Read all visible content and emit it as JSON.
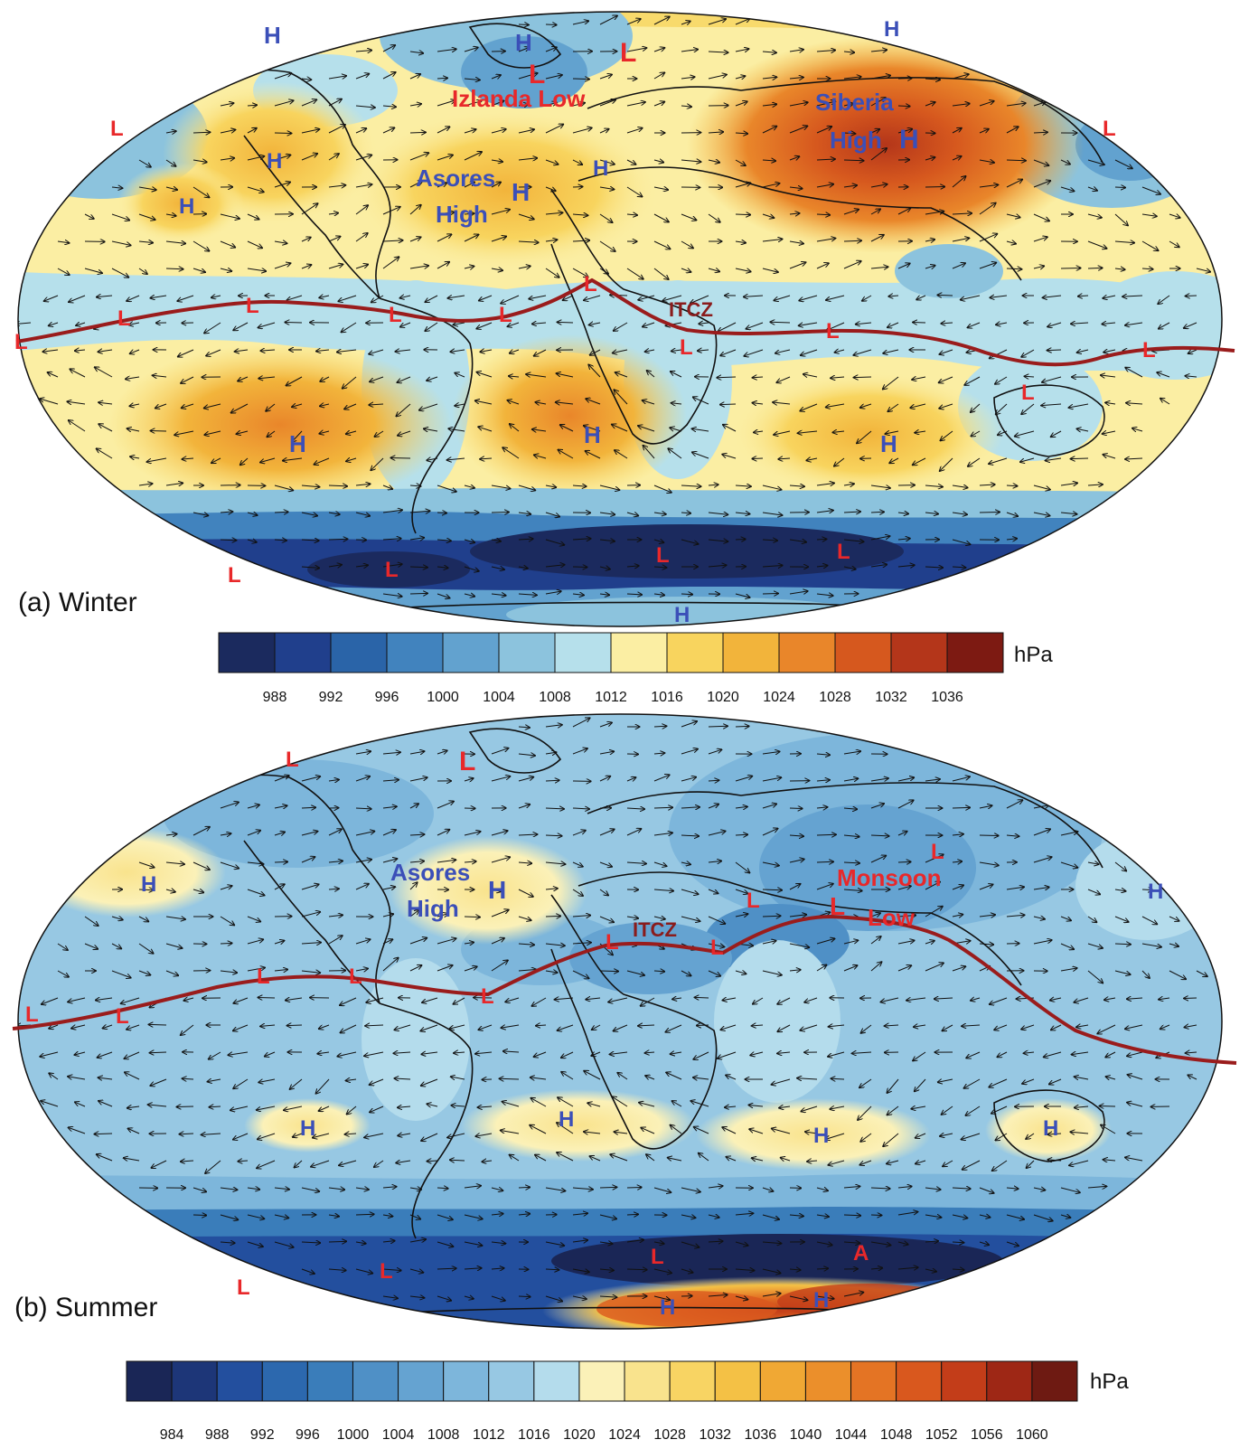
{
  "panels": [
    {
      "id": "winter",
      "title": "(a) Winter",
      "itcz": "ITCZ",
      "units": "hPa",
      "ticks": [
        "988",
        "992",
        "996",
        "1000",
        "1004",
        "1008",
        "1012",
        "1016",
        "1020",
        "1024",
        "1028",
        "1032",
        "1036"
      ],
      "colors": [
        "#1b2a5e",
        "#203f8c",
        "#2a64a8",
        "#4183be",
        "#62a2cf",
        "#8cc3dd",
        "#b6e0eb",
        "#fbeea3",
        "#f8d45e",
        "#f2b43b",
        "#e9862a",
        "#d6581e",
        "#b4361a",
        "#7d1a12"
      ],
      "labels": [
        {
          "t": "H",
          "c": "blue"
        },
        {
          "t": "H",
          "c": "blue"
        },
        {
          "t": "L",
          "c": "red"
        },
        {
          "t": "L",
          "c": "red"
        },
        {
          "t": "Izlanda Low",
          "c": "red"
        },
        {
          "t": "H",
          "c": "blue"
        },
        {
          "t": "Siberia",
          "c": "blue"
        },
        {
          "t": "High",
          "c": "blue"
        },
        {
          "t": "H",
          "c": "blue"
        },
        {
          "t": "L",
          "c": "red"
        },
        {
          "t": "L",
          "c": "red"
        },
        {
          "t": "H",
          "c": "blue"
        },
        {
          "t": "Asores",
          "c": "blue"
        },
        {
          "t": "High",
          "c": "blue"
        },
        {
          "t": "H",
          "c": "blue"
        },
        {
          "t": "H",
          "c": "blue"
        },
        {
          "t": "H",
          "c": "blue"
        },
        {
          "t": "L",
          "c": "red"
        },
        {
          "t": "L",
          "c": "red"
        },
        {
          "t": "L",
          "c": "red"
        },
        {
          "t": "L",
          "c": "red"
        },
        {
          "t": "L",
          "c": "red"
        },
        {
          "t": "L",
          "c": "red"
        },
        {
          "t": "L",
          "c": "red"
        },
        {
          "t": "L",
          "c": "red"
        },
        {
          "t": "L",
          "c": "red"
        },
        {
          "t": "L",
          "c": "red"
        },
        {
          "t": "H",
          "c": "blue"
        },
        {
          "t": "H",
          "c": "blue"
        },
        {
          "t": "H",
          "c": "blue"
        },
        {
          "t": "L",
          "c": "red"
        },
        {
          "t": "L",
          "c": "red"
        },
        {
          "t": "L",
          "c": "red"
        },
        {
          "t": "L",
          "c": "red"
        },
        {
          "t": "H",
          "c": "blue"
        }
      ]
    },
    {
      "id": "summer",
      "title": "(b) Summer",
      "itcz": "ITCZ",
      "units": "hPa",
      "ticks": [
        "984",
        "988",
        "992",
        "996",
        "1000",
        "1004",
        "1008",
        "1012",
        "1016",
        "1020",
        "1024",
        "1028",
        "1032",
        "1036",
        "1040",
        "1044",
        "1048",
        "1052",
        "1056",
        "1060"
      ],
      "colors": [
        "#1a2656",
        "#1d3678",
        "#234f9e",
        "#2c68ae",
        "#3a7dba",
        "#4f90c6",
        "#65a3d1",
        "#7db6db",
        "#97c8e3",
        "#b4dcec",
        "#fbf1b8",
        "#f9e38d",
        "#f8d463",
        "#f4c145",
        "#f0a834",
        "#eb8f2b",
        "#e47424",
        "#d9581e",
        "#c33d19",
        "#9e2715",
        "#6e1a12"
      ],
      "labels": [
        {
          "t": "L",
          "c": "red"
        },
        {
          "t": "L",
          "c": "red"
        },
        {
          "t": "H",
          "c": "blue"
        },
        {
          "t": "Asores",
          "c": "blue"
        },
        {
          "t": "High",
          "c": "blue"
        },
        {
          "t": "H",
          "c": "blue"
        },
        {
          "t": "L",
          "c": "red"
        },
        {
          "t": "Monsoon",
          "c": "red"
        },
        {
          "t": "Low",
          "c": "red"
        },
        {
          "t": "L",
          "c": "red"
        },
        {
          "t": "L",
          "c": "red"
        },
        {
          "t": "H",
          "c": "blue"
        },
        {
          "t": "L",
          "c": "red"
        },
        {
          "t": "L",
          "c": "red"
        },
        {
          "t": "L",
          "c": "red"
        },
        {
          "t": "L",
          "c": "red"
        },
        {
          "t": "L",
          "c": "red"
        },
        {
          "t": "L",
          "c": "red"
        },
        {
          "t": "H",
          "c": "blue"
        },
        {
          "t": "H",
          "c": "blue"
        },
        {
          "t": "H",
          "c": "blue"
        },
        {
          "t": "H",
          "c": "blue"
        },
        {
          "t": "L",
          "c": "red"
        },
        {
          "t": "L",
          "c": "red"
        },
        {
          "t": "L",
          "c": "red"
        },
        {
          "t": "A",
          "c": "red"
        },
        {
          "t": "H",
          "c": "blue"
        },
        {
          "t": "H",
          "c": "blue"
        }
      ]
    }
  ]
}
